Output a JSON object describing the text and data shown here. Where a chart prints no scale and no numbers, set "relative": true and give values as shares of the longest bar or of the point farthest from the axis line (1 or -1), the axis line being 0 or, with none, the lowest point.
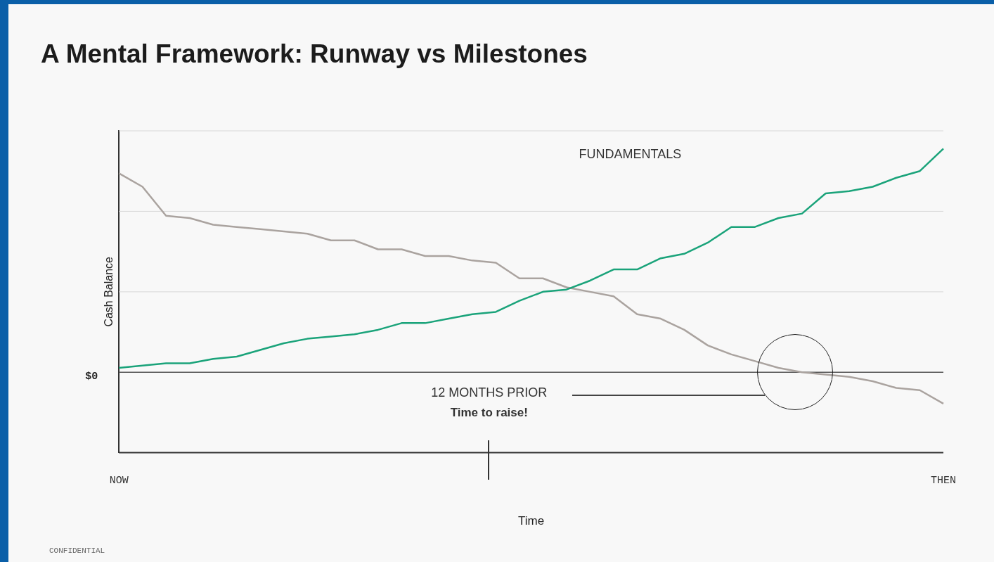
{
  "chart_data": {
    "type": "line",
    "title": "A Mental Framework: Runway vs Milestones",
    "xlabel": "Time",
    "ylabel": "Cash Balance",
    "categories": [
      "NOW",
      null,
      null,
      null,
      null,
      null,
      null,
      null,
      null,
      null,
      null,
      null,
      null,
      null,
      null,
      null,
      null,
      null,
      null,
      null,
      null,
      null,
      null,
      null,
      null,
      null,
      null,
      null,
      null,
      null,
      null,
      null,
      null,
      null,
      null,
      "THEN"
    ],
    "relative": true,
    "series": [
      {
        "color": "#1aa37a",
        "values": [
          0.02,
          0.03,
          0.04,
          0.04,
          0.06,
          0.07,
          0.1,
          0.13,
          0.15,
          0.16,
          0.17,
          0.19,
          0.22,
          0.22,
          0.24,
          0.26,
          0.27,
          0.32,
          0.36,
          0.37,
          0.41,
          0.46,
          0.46,
          0.51,
          0.53,
          0.58,
          0.65,
          0.65,
          0.69,
          0.71,
          0.8,
          0.81,
          0.83,
          0.87,
          0.9,
          1
        ]
      },
      {
        "color": "#aaa39f",
        "values": [
          0.89,
          0.83,
          0.7,
          0.69,
          0.66,
          0.65,
          0.64,
          0.63,
          0.62,
          0.59,
          0.59,
          0.55,
          0.55,
          0.52,
          0.52,
          0.5,
          0.49,
          0.42,
          0.42,
          0.38,
          0.36,
          0.34,
          0.26,
          0.24,
          0.19,
          0.12,
          0.08,
          0.05,
          0.02,
          0.0,
          -0.01,
          -0.02,
          -0.04,
          -0.07,
          -0.08,
          -0.14
        ]
      }
    ],
    "ref_lines": [
      {
        "axis": "y",
        "value": 0,
        "label": "$0",
        "color": "#555555"
      },
      {
        "axis": "y",
        "value": 0.36,
        "color": "#d8d8d8"
      },
      {
        "axis": "y",
        "value": 0.72,
        "color": "#d8d8d8"
      },
      {
        "axis": "y",
        "value": 1.08,
        "color": "#d8d8d8"
      }
    ],
    "annotations": [
      "FUNDAMENTALS",
      "12 MONTHS PRIOR",
      "Time to raise!",
      "CONFIDENTIAL"
    ],
    "legend": false,
    "marker": "none",
    "line_style": "solid"
  }
}
